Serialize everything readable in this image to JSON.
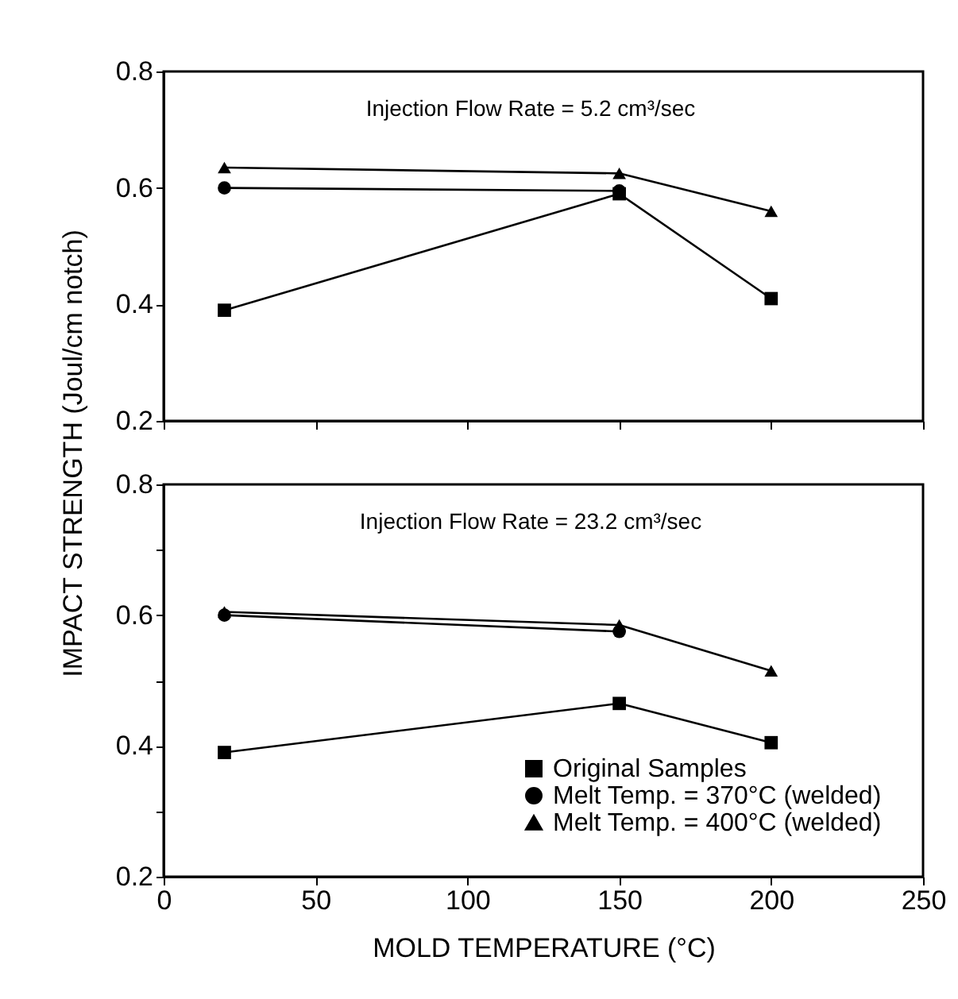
{
  "chart_data": [
    {
      "type": "line",
      "ylabel": "IMPACT STRENGTH (Joul/cm notch)",
      "annotations": [
        "Injection Flow Rate = 5.2 cm³/sec"
      ],
      "xlim": [
        0,
        250
      ],
      "xticks": [
        0,
        50,
        100,
        150,
        200,
        250
      ],
      "ylim": [
        0.2,
        0.8
      ],
      "yticks": [
        0.2,
        0.4,
        0.6,
        0.8
      ],
      "tick_labels": "y",
      "line_style": "solid",
      "series": [
        {
          "color": "#000000",
          "marker": "square",
          "x": [
            20,
            150,
            200
          ],
          "values": [
            0.39,
            0.59,
            0.41
          ]
        },
        {
          "color": "#000000",
          "marker": "circle",
          "x": [
            20,
            150
          ],
          "values": [
            0.6,
            0.595
          ]
        },
        {
          "color": "#000000",
          "marker": "triangle",
          "x": [
            20,
            150,
            200
          ],
          "values": [
            0.635,
            0.625,
            0.56
          ]
        }
      ]
    },
    {
      "type": "line",
      "xlabel": "MOLD TEMPERATURE (°C)",
      "annotations": [
        "Injection Flow Rate = 23.2 cm³/sec"
      ],
      "xlim": [
        0,
        250
      ],
      "xticks": [
        0,
        50,
        100,
        150,
        200,
        250
      ],
      "ylim": [
        0.2,
        0.8
      ],
      "yticks": [
        0.2,
        {
          "value": 0.3,
          "label": null
        },
        0.4,
        {
          "value": 0.5,
          "label": null
        },
        0.6,
        {
          "value": 0.7,
          "label": null
        },
        0.8
      ],
      "legend": "bottom right",
      "line_style": "solid",
      "series": [
        {
          "name": "Original Samples",
          "color": "#000000",
          "marker": "square",
          "x": [
            20,
            150,
            200
          ],
          "values": [
            0.39,
            0.465,
            0.405
          ]
        },
        {
          "name": "Melt Temp. = 370°C (welded)",
          "color": "#000000",
          "marker": "circle",
          "x": [
            20,
            150
          ],
          "values": [
            0.6,
            0.575
          ]
        },
        {
          "name": "Melt Temp. = 400°C (welded)",
          "color": "#000000",
          "marker": "triangle",
          "x": [
            20,
            150,
            200
          ],
          "values": [
            0.605,
            0.585,
            0.515
          ]
        }
      ]
    }
  ]
}
